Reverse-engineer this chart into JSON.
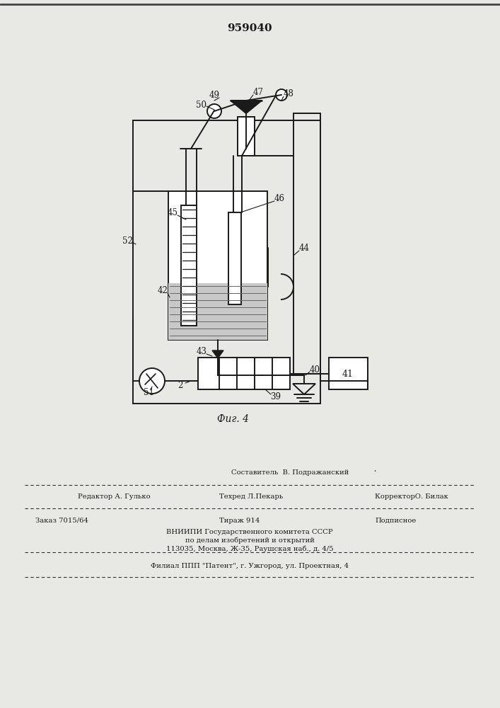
{
  "title": "959040",
  "fig_label": "Фиг. 4",
  "bg_color": "#e8e8e4",
  "line_color": "#1a1a1a",
  "bottom_texts": {
    "sostavitel": "Составитель  В. Подражанский",
    "redaktor": "Редактор А. Гулько",
    "tehred": "Техред Л.Пекарь",
    "korrektor": "КорректорО. Билак",
    "zakaz": "Заказ 7015/64",
    "tirazh": "Тираж 914",
    "podpisnoe": "Подписное",
    "vniip1": "ВНИИПИ Государственного комитета СССР",
    "vniip2": "по делам изобретений и открытий",
    "vniip3": "113035, Москва, Ж-35, Раушская наб., д. 4/5",
    "filial": "Филиал ППП \"Патент\", г. Ужгород, ул. Проектная, 4"
  }
}
